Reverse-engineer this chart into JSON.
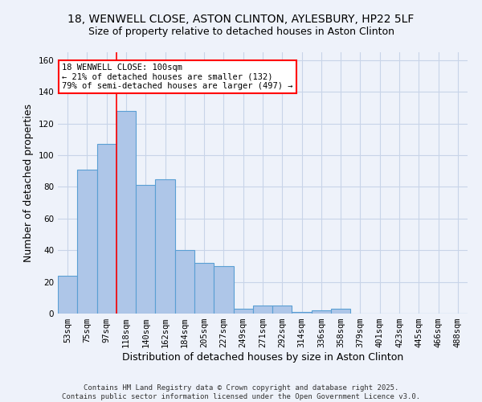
{
  "title_line1": "18, WENWELL CLOSE, ASTON CLINTON, AYLESBURY, HP22 5LF",
  "title_line2": "Size of property relative to detached houses in Aston Clinton",
  "xlabel": "Distribution of detached houses by size in Aston Clinton",
  "ylabel": "Number of detached properties",
  "bar_labels": [
    "53sqm",
    "75sqm",
    "97sqm",
    "118sqm",
    "140sqm",
    "162sqm",
    "184sqm",
    "205sqm",
    "227sqm",
    "249sqm",
    "271sqm",
    "292sqm",
    "314sqm",
    "336sqm",
    "358sqm",
    "379sqm",
    "401sqm",
    "423sqm",
    "445sqm",
    "466sqm",
    "488sqm"
  ],
  "bar_values": [
    24,
    91,
    107,
    128,
    81,
    85,
    40,
    32,
    30,
    3,
    5,
    5,
    1,
    2,
    3,
    0,
    0,
    0,
    0,
    0,
    0
  ],
  "bar_color": "#aec6e8",
  "bar_edge_color": "#5a9fd4",
  "red_line_x": 2.5,
  "annotation_text": "18 WENWELL CLOSE: 100sqm\n← 21% of detached houses are smaller (132)\n79% of semi-detached houses are larger (497) →",
  "annotation_box_color": "white",
  "annotation_box_edge_color": "red",
  "ylim": [
    0,
    165
  ],
  "yticks": [
    0,
    20,
    40,
    60,
    80,
    100,
    120,
    140,
    160
  ],
  "grid_color": "#c8d4e8",
  "background_color": "#eef2fa",
  "footnote_line1": "Contains HM Land Registry data © Crown copyright and database right 2025.",
  "footnote_line2": "Contains public sector information licensed under the Open Government Licence v3.0.",
  "title_fontsize": 10,
  "subtitle_fontsize": 9,
  "tick_fontsize": 7.5,
  "label_fontsize": 9,
  "annot_fontsize": 7.5
}
